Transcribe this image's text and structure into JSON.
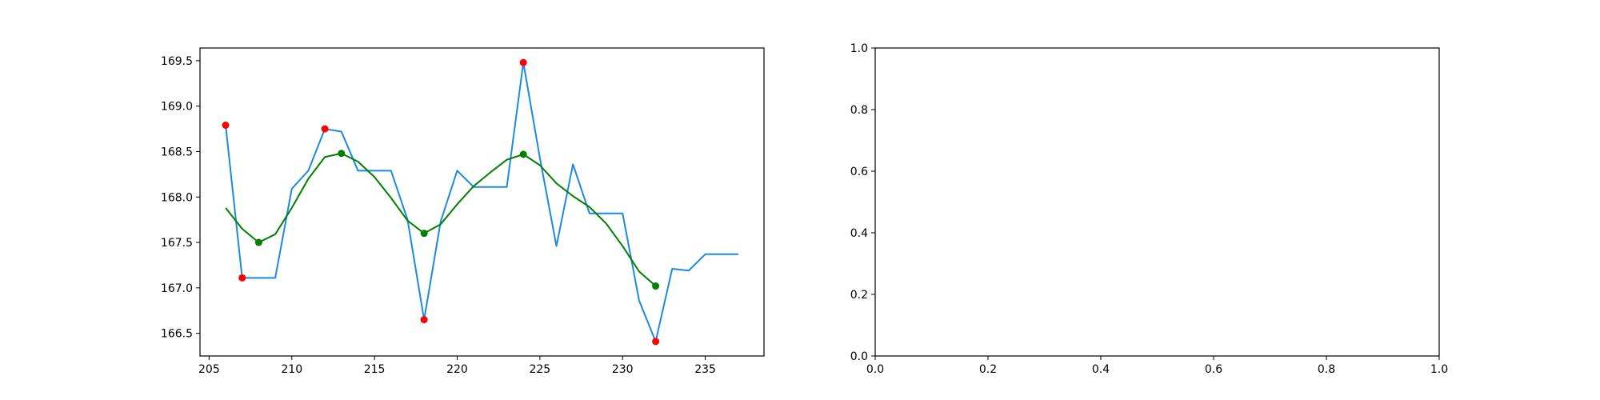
{
  "chart_data": [
    {
      "type": "line",
      "xlim": [
        204.45,
        238.55
      ],
      "ylim": [
        166.25,
        169.64
      ],
      "grid": false,
      "x_ticks": [
        {
          "value": 205,
          "label": "205"
        },
        {
          "value": 210,
          "label": "210"
        },
        {
          "value": 215,
          "label": "215"
        },
        {
          "value": 220,
          "label": "220"
        },
        {
          "value": 225,
          "label": "225"
        },
        {
          "value": 230,
          "label": "230"
        },
        {
          "value": 235,
          "label": "235"
        }
      ],
      "y_ticks": [
        {
          "value": 166.5,
          "label": "166.5"
        },
        {
          "value": 167.0,
          "label": "167.0"
        },
        {
          "value": 167.5,
          "label": "167.5"
        },
        {
          "value": 168.0,
          "label": "168.0"
        },
        {
          "value": 168.5,
          "label": "168.5"
        },
        {
          "value": 169.0,
          "label": "169.0"
        },
        {
          "value": 169.5,
          "label": "169.5"
        }
      ],
      "series": [
        {
          "color": "#1e88e5",
          "x": [
            206,
            207,
            208,
            209,
            210,
            211,
            212,
            213,
            214,
            215,
            216,
            217,
            218,
            219,
            220,
            221,
            222,
            223,
            224,
            225,
            226,
            227,
            228,
            229,
            230,
            231,
            232,
            233,
            234,
            235,
            236,
            237
          ],
          "y": [
            168.79,
            167.11,
            167.11,
            167.11,
            168.09,
            168.29,
            168.75,
            168.72,
            168.29,
            168.29,
            168.29,
            167.75,
            166.65,
            167.73,
            168.29,
            168.11,
            168.11,
            168.11,
            169.48,
            168.43,
            167.46,
            168.36,
            167.82,
            167.82,
            167.82,
            166.86,
            166.41,
            167.21,
            167.19,
            167.37,
            167.37,
            167.37
          ]
        },
        {
          "color": "#007f00",
          "x": [
            206,
            207,
            208,
            209,
            210,
            211,
            212,
            213,
            214,
            215,
            216,
            217,
            218,
            219,
            220,
            221,
            222,
            223,
            224,
            225,
            226,
            227,
            228,
            229,
            230,
            231,
            232
          ],
          "y": [
            167.88,
            167.65,
            167.5,
            167.59,
            167.88,
            168.2,
            168.44,
            168.48,
            168.39,
            168.22,
            167.99,
            167.74,
            167.6,
            167.7,
            167.92,
            168.12,
            168.27,
            168.41,
            168.47,
            168.35,
            168.15,
            168.01,
            167.89,
            167.71,
            167.46,
            167.18,
            167.02
          ]
        }
      ],
      "markers": [
        {
          "color": "#ff0000",
          "x": [
            206,
            207,
            212,
            218,
            224,
            232
          ],
          "y": [
            168.79,
            167.11,
            168.75,
            166.65,
            169.48,
            166.41
          ]
        },
        {
          "color": "#007f00",
          "x": [
            208,
            213,
            218,
            224,
            232
          ],
          "y": [
            167.5,
            168.48,
            167.6,
            168.47,
            167.02
          ]
        }
      ]
    },
    {
      "type": "line",
      "xlim": [
        0,
        1
      ],
      "ylim": [
        0,
        1
      ],
      "grid": false,
      "x_ticks": [
        {
          "value": 0.0,
          "label": "0.0"
        },
        {
          "value": 0.2,
          "label": "0.2"
        },
        {
          "value": 0.4,
          "label": "0.4"
        },
        {
          "value": 0.6,
          "label": "0.6"
        },
        {
          "value": 0.8,
          "label": "0.8"
        },
        {
          "value": 1.0,
          "label": "1.0"
        }
      ],
      "y_ticks": [
        {
          "value": 0.0,
          "label": "0.0"
        },
        {
          "value": 0.2,
          "label": "0.2"
        },
        {
          "value": 0.4,
          "label": "0.4"
        },
        {
          "value": 0.6,
          "label": "0.6"
        },
        {
          "value": 0.8,
          "label": "0.8"
        },
        {
          "value": 1.0,
          "label": "1.0"
        }
      ],
      "series": [],
      "markers": []
    }
  ]
}
